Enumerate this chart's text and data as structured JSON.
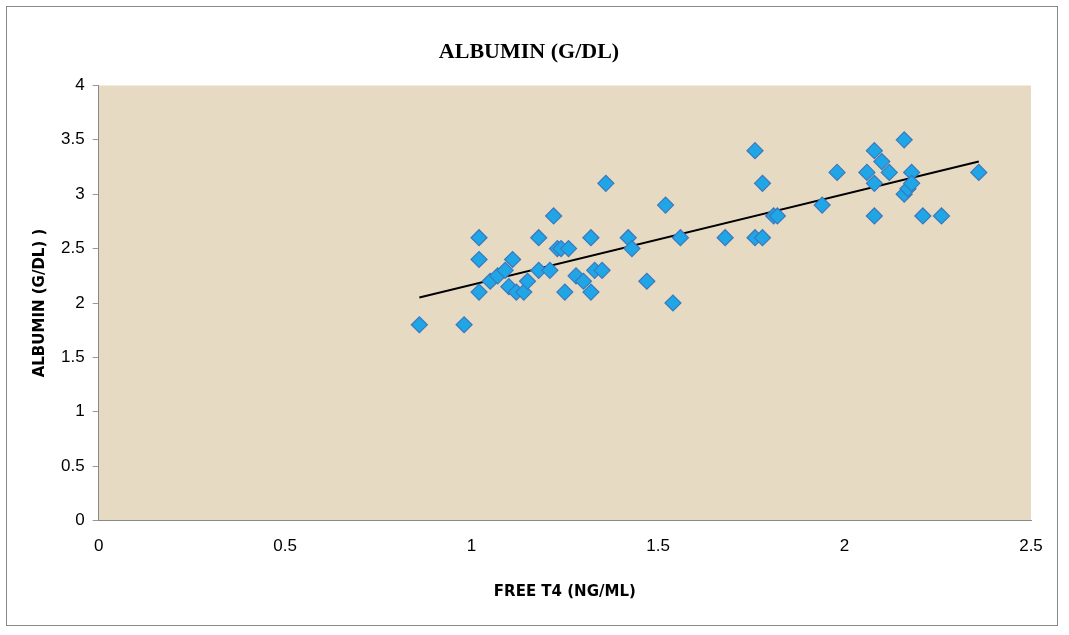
{
  "chart_data": {
    "type": "scatter",
    "title": "ALBUMIN (G/DL)",
    "xlabel": "FREE T4 (NG/ML)",
    "ylabel": "ALBUMIN (G/DL) )",
    "xlim": [
      0,
      2.5
    ],
    "xticks": [
      0,
      0.5,
      1,
      1.5,
      2,
      2.5
    ],
    "ylim": [
      0,
      4
    ],
    "yticks": [
      0,
      0.5,
      1,
      1.5,
      2,
      2.5,
      3,
      3.5,
      4
    ],
    "grid": false,
    "legend": false,
    "marker": "diamond",
    "series": [
      {
        "color": "#1ea6e6",
        "x": [
          0.86,
          0.98,
          1.02,
          1.02,
          1.02,
          1.05,
          1.07,
          1.09,
          1.1,
          1.11,
          1.12,
          1.14,
          1.15,
          1.18,
          1.18,
          1.21,
          1.22,
          1.23,
          1.24,
          1.25,
          1.26,
          1.28,
          1.3,
          1.32,
          1.32,
          1.33,
          1.35,
          1.36,
          1.42,
          1.43,
          1.47,
          1.52,
          1.54,
          1.56,
          1.68,
          1.76,
          1.76,
          1.78,
          1.78,
          1.81,
          1.82,
          1.94,
          1.98,
          2.06,
          2.08,
          2.08,
          2.08,
          2.1,
          2.12,
          2.16,
          2.16,
          2.17,
          2.18,
          2.18,
          2.21,
          2.26,
          2.36
        ],
        "values": [
          1.8,
          1.8,
          2.6,
          2.4,
          2.1,
          2.2,
          2.25,
          2.3,
          2.15,
          2.4,
          2.1,
          2.1,
          2.2,
          2.3,
          2.6,
          2.3,
          2.8,
          2.5,
          2.5,
          2.1,
          2.5,
          2.25,
          2.2,
          2.6,
          2.1,
          2.3,
          2.3,
          3.1,
          2.6,
          2.5,
          2.2,
          2.9,
          2.0,
          2.6,
          2.6,
          3.4,
          2.6,
          3.1,
          2.6,
          2.8,
          2.8,
          2.9,
          3.2,
          3.2,
          3.4,
          3.1,
          2.8,
          3.3,
          3.2,
          3.5,
          3.0,
          3.05,
          3.2,
          3.1,
          2.8,
          2.8,
          3.2
        ]
      },
      {
        "type": "line",
        "color": "#000000",
        "marker": "none",
        "x": [
          0.86,
          2.36
        ],
        "values": [
          2.05,
          3.3
        ]
      }
    ]
  }
}
